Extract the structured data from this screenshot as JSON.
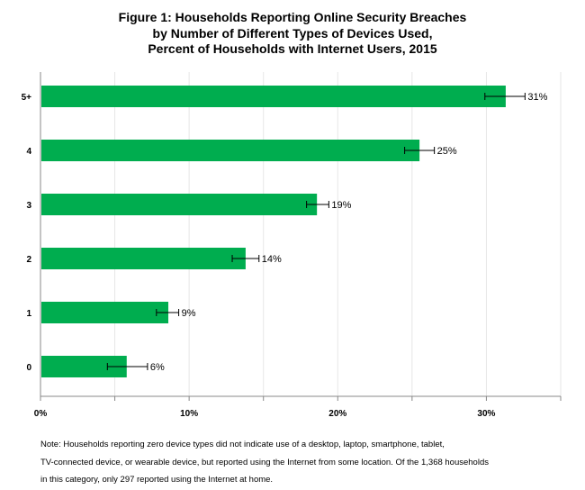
{
  "chart_data": {
    "type": "bar",
    "orientation": "horizontal",
    "title_lines": [
      "Figure 1: Households Reporting Online Security Breaches",
      "by Number of Different Types of Devices Used,",
      "Percent of Households with Internet Users, 2015"
    ],
    "categories": [
      "5+",
      "4",
      "3",
      "2",
      "1",
      "0"
    ],
    "values": [
      31.3,
      25.5,
      18.6,
      13.8,
      8.6,
      5.8
    ],
    "labels": [
      "31%",
      "25%",
      "19%",
      "14%",
      "9%",
      "6%"
    ],
    "error_low": [
      29.9,
      24.5,
      17.9,
      12.9,
      7.8,
      4.5
    ],
    "error_high": [
      32.6,
      26.5,
      19.4,
      14.7,
      9.3,
      7.2
    ],
    "xlim": [
      0,
      35
    ],
    "xticks": [
      0,
      10,
      20,
      30
    ],
    "xtick_labels": [
      "0%",
      "10%",
      "20%",
      "30%"
    ],
    "minor_grid_step": 5,
    "grid": true,
    "bar_color": "#00ad4f",
    "xlabel": "",
    "ylabel": ""
  },
  "note": [
    "Note: Households reporting zero device types did not indicate use of a desktop, laptop, smartphone, tablet,",
    "TV-connected device, or wearable device, but reported using the Internet from some location. Of the 1,368 households",
    "in this category, only 297 reported using the Internet at home."
  ]
}
